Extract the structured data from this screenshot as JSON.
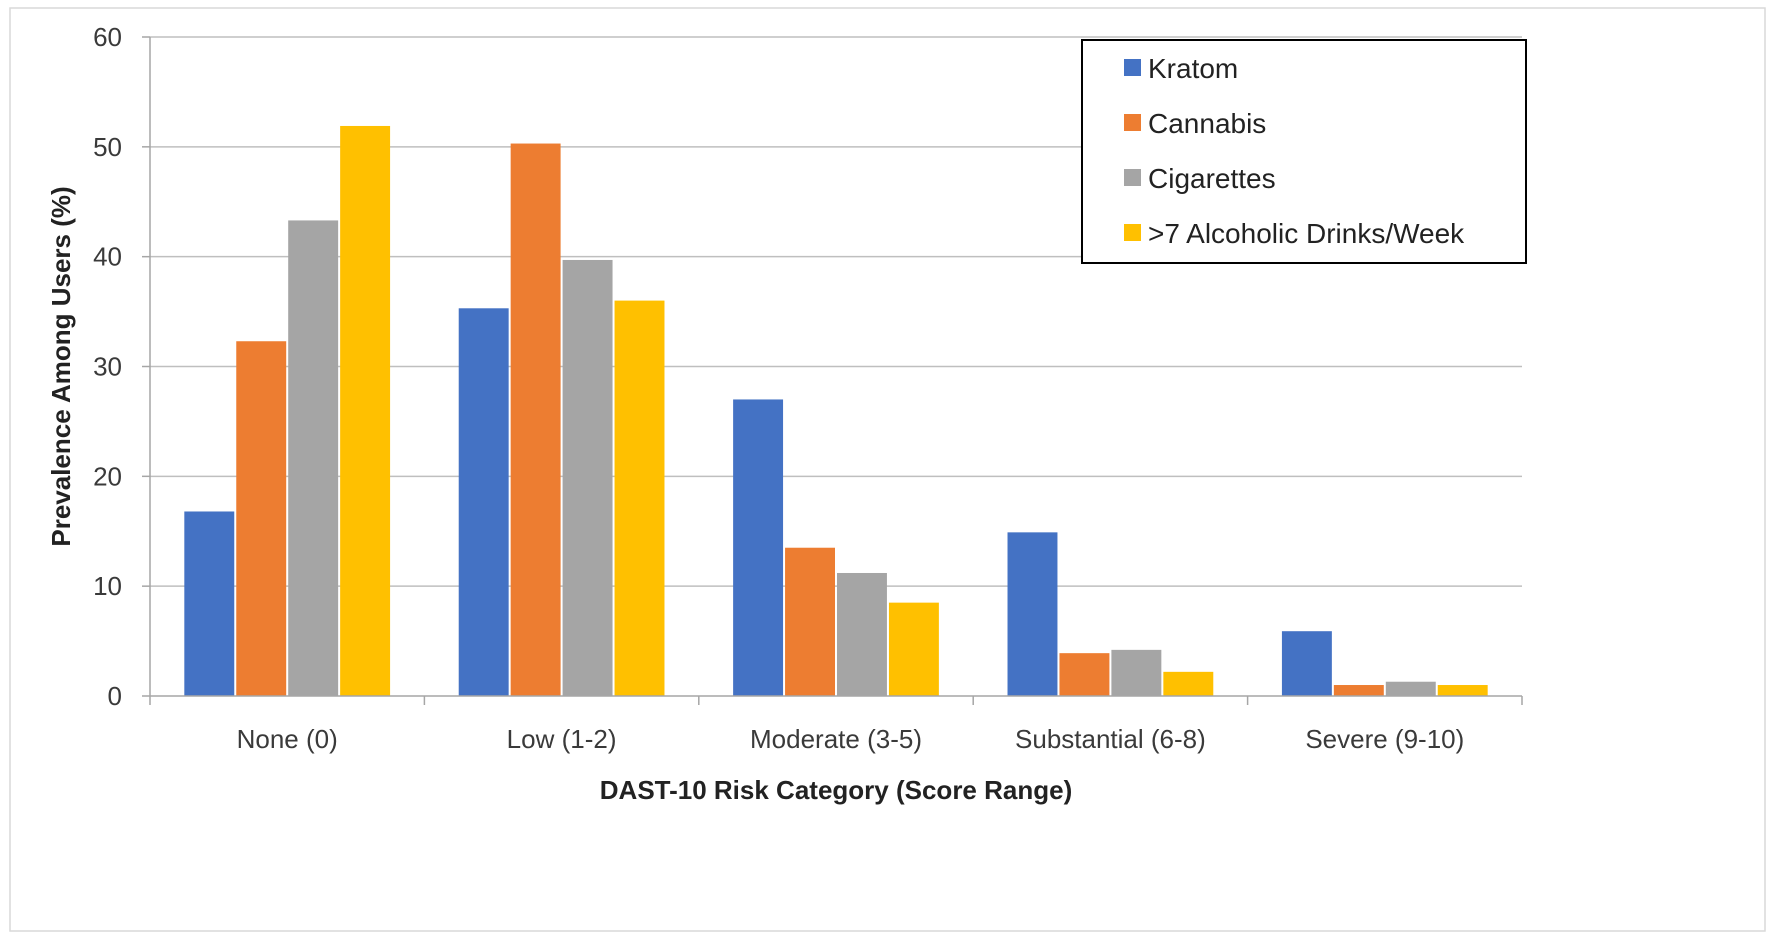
{
  "chart_data": {
    "type": "bar",
    "title": "",
    "xlabel": "DAST-10 Risk Category (Score Range)",
    "ylabel": "Prevalence Among Users (%)",
    "ylim": [
      0,
      60
    ],
    "yticks": [
      0,
      10,
      20,
      30,
      40,
      50,
      60
    ],
    "grid": true,
    "legend_position": "top-right",
    "categories": [
      "None (0)",
      "Low (1-2)",
      "Moderate (3-5)",
      "Substantial (6-8)",
      "Severe (9-10)"
    ],
    "series": [
      {
        "name": "Kratom",
        "color": "#4472C4",
        "values": [
          16.8,
          35.3,
          27.0,
          14.9,
          5.9
        ]
      },
      {
        "name": "Cannabis",
        "color": "#ED7D31",
        "values": [
          32.3,
          50.3,
          13.5,
          3.9,
          1.0
        ]
      },
      {
        "name": "Cigarettes",
        "color": "#A5A5A5",
        "values": [
          43.3,
          39.7,
          11.2,
          4.2,
          1.3
        ]
      },
      {
        "name": ">7 Alcoholic Drinks/Week",
        "color": "#FFC000",
        "values": [
          51.9,
          36.0,
          8.5,
          2.2,
          1.0
        ]
      }
    ]
  }
}
